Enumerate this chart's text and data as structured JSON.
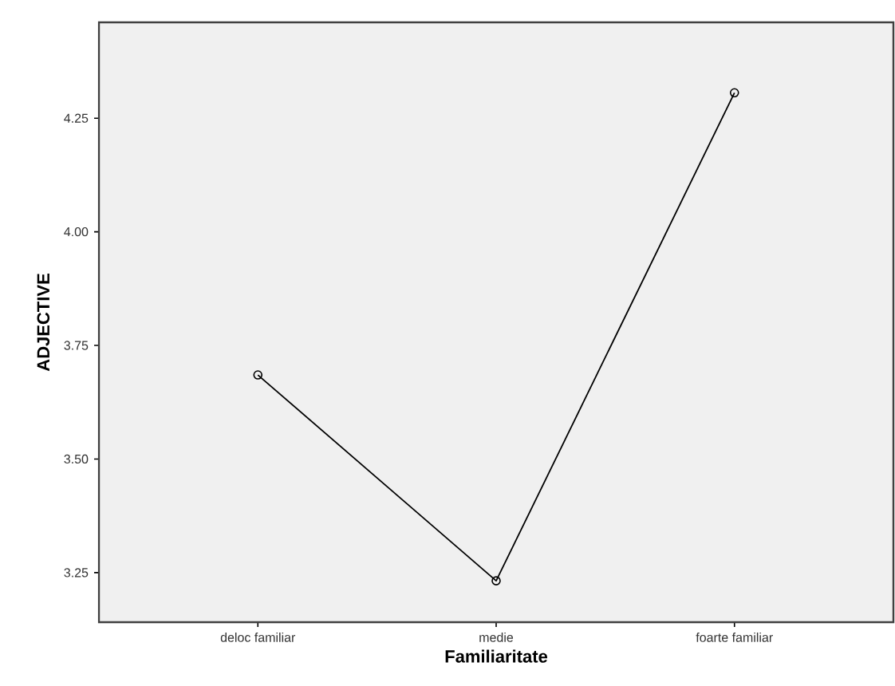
{
  "chart_data": {
    "type": "line",
    "xlabel": "Familiaritate",
    "ylabel": "ADJECTIVE",
    "categories": [
      "deloc familiar",
      "medie",
      "foarte familiar"
    ],
    "series": [
      {
        "color": "#000000",
        "values": [
          3.685,
          3.232,
          4.306
        ]
      }
    ],
    "ylim": [
      3.141,
      4.461
    ],
    "yticks": [
      {
        "value": 3.25,
        "label": "3.25"
      },
      {
        "value": 3.5,
        "label": "3.50"
      },
      {
        "value": 3.75,
        "label": "3.75"
      },
      {
        "value": 4.0,
        "label": "4.00"
      },
      {
        "value": 4.25,
        "label": "4.25"
      }
    ],
    "grid": false,
    "marker": "circle",
    "line_style": "solid"
  }
}
